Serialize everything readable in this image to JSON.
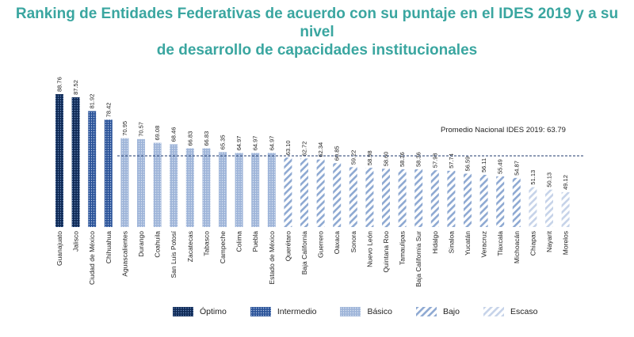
{
  "title_line1": "Ranking de Entidades Federativas de acuerdo con su puntaje en el IDES 2019 y a su nivel",
  "title_line2": "de desarrollo de capacidades institucionales",
  "chart_data": {
    "type": "bar",
    "title": "Ranking de Entidades Federativas de acuerdo con su puntaje en el IDES 2019 y a su nivel de desarrollo de capacidades institucionales",
    "categories": [
      "Guanajuato",
      "Jalisco",
      "Ciudad de México",
      "Chihuahua",
      "Aguascalientes",
      "Durango",
      "Coahuila",
      "San Luis Potosí",
      "Zacatecas",
      "Tabasco",
      "Campeche",
      "Colima",
      "Puebla",
      "Estado de México",
      "Querétaro",
      "Baja California",
      "Guerrero",
      "Oaxaca",
      "Sonora",
      "Nuevo León",
      "Quintana Roo",
      "Tamaulipas",
      "Baja California Sur",
      "Hidalgo",
      "Sinaloa",
      "Yucatán",
      "Veracruz",
      "Tlaxcala",
      "Michoacán",
      "Chiapas",
      "Nayarit",
      "Morelos"
    ],
    "values": [
      88.76,
      87.52,
      81.92,
      78.42,
      70.95,
      70.57,
      69.08,
      68.46,
      66.83,
      66.83,
      65.35,
      64.97,
      64.97,
      64.97,
      63.1,
      62.72,
      62.34,
      60.85,
      59.22,
      58.98,
      58.6,
      58.36,
      58.36,
      57.98,
      57.74,
      56.59,
      56.11,
      55.49,
      54.87,
      51.13,
      50.13,
      49.12
    ],
    "value_labels": [
      "88.76",
      "87.52",
      "81.92",
      "78.42",
      "70.95",
      "70.57",
      "69.08",
      "68.46",
      "66.83",
      "66.83",
      "65.35",
      "64.97",
      "64.97",
      "64.97",
      "63.10",
      "62.72",
      "62.34",
      "60.85",
      "59.22",
      "58.98",
      "58.60",
      "58.36",
      "58.36",
      "57.98",
      "57.74",
      "56.59",
      "56.11",
      "55.49",
      "54.87",
      "51.13",
      "50.13",
      "49.12"
    ],
    "levels": [
      "Óptimo",
      "Óptimo",
      "Intermedio",
      "Intermedio",
      "Básico",
      "Básico",
      "Básico",
      "Básico",
      "Básico",
      "Básico",
      "Básico",
      "Básico",
      "Básico",
      "Básico",
      "Bajo",
      "Bajo",
      "Bajo",
      "Bajo",
      "Bajo",
      "Bajo",
      "Bajo",
      "Bajo",
      "Bajo",
      "Bajo",
      "Bajo",
      "Bajo",
      "Bajo",
      "Bajo",
      "Bajo",
      "Escaso",
      "Escaso",
      "Escaso"
    ],
    "reference_line": {
      "label": "Promedio Nacional IDES 2019: 63.79",
      "value": 63.79
    },
    "legend": [
      "Óptimo",
      "Intermedio",
      "Básico",
      "Bajo",
      "Escaso"
    ],
    "legend_position": "bottom",
    "grid": false
  },
  "colors": {
    "title": "#3aa6a0",
    "optimo_bg": "#0f2a56",
    "optimo_dot": "#6f8fc0",
    "intermedio_bg": "#2c5499",
    "intermedio_dot": "#b9cbe8",
    "basico_bg": "#9fb5d9",
    "basico_dot": "#dde6f4",
    "bajo_stripe": "#8ea9d2",
    "escaso_stripe": "#c6d3e9",
    "average_line": "#1f3a6e"
  }
}
